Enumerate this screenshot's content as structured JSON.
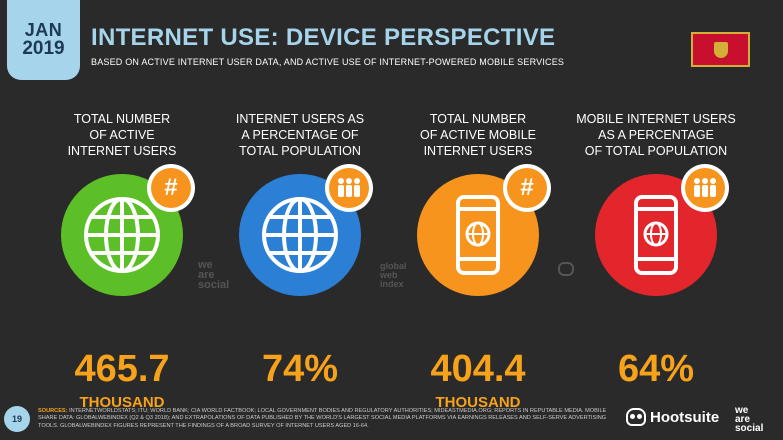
{
  "header": {
    "month": "JAN",
    "year": "2019",
    "title": "INTERNET USE: DEVICE PERSPECTIVE",
    "subtitle": "BASED ON ACTIVE INTERNET USER DATA, AND ACTIVE USE OF INTERNET-POWERED MOBILE SERVICES"
  },
  "stats": [
    {
      "label_lines": [
        "TOTAL NUMBER",
        "OF ACTIVE",
        "INTERNET USERS"
      ],
      "value": "465.7",
      "unit": "THOUSAND",
      "color": "#5cbf27",
      "icon": "globe-icon",
      "badge": "hash-icon"
    },
    {
      "label_lines": [
        "INTERNET USERS AS",
        "A PERCENTAGE OF",
        "TOTAL POPULATION"
      ],
      "value": "74%",
      "unit": "",
      "color": "#2b7fd4",
      "icon": "globe-icon",
      "badge": "people-icon"
    },
    {
      "label_lines": [
        "TOTAL NUMBER",
        "OF ACTIVE MOBILE",
        "INTERNET USERS"
      ],
      "value": "404.4",
      "unit": "THOUSAND",
      "color": "#f7941d",
      "icon": "mobile-phone-icon",
      "badge": "hash-icon"
    },
    {
      "label_lines": [
        "MOBILE INTERNET USERS",
        "AS A PERCENTAGE",
        "OF TOTAL POPULATION"
      ],
      "value": "64%",
      "unit": "",
      "color": "#e3262b",
      "icon": "mobile-phone-icon",
      "badge": "people-icon"
    }
  ],
  "watermarks": {
    "wearesocial": [
      "we",
      "are",
      "social"
    ],
    "globalwebindex": [
      "global",
      "web",
      "index"
    ]
  },
  "footer": {
    "page_number": "19",
    "sources_lead": "SOURCES:",
    "sources_text": "INTERNETWORLDSTATS; ITU; WORLD BANK; CIA WORLD FACTBOOK; LOCAL GOVERNMENT BODIES AND REGULATORY AUTHORITIES; MIDEASTMEDIA.ORG; REPORTS IN REPUTABLE MEDIA. MOBILE SHARE DATA: GLOBALWEBINDEX (Q2 & Q3 2018); AND EXTRAPOLATIONS OF DATA PUBLISHED BY THE WORLD'S LARGEST SOCIAL MEDIA PLATFORMS VIA EARNINGS RELEASES AND SELF-SERVE ADVERTISING TOOLS. GLOBALWEBINDEX FIGURES REPRESENT THE FINDINGS OF A BROAD SURVEY OF INTERNET USERS AGED 16-64.",
    "brand": "Hootsuite",
    "brand2": [
      "we",
      "are",
      "social"
    ]
  }
}
